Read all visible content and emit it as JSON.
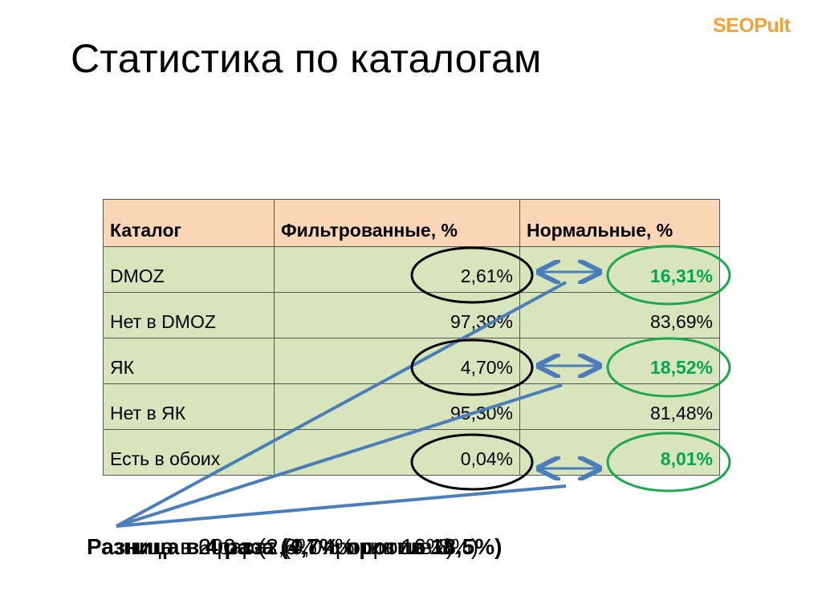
{
  "slide": {
    "title": "Статистика по каталогам",
    "logo": "SEOPult"
  },
  "table": {
    "headers": [
      "Каталог",
      "Фильтрованные, %",
      "Нормальные, %"
    ],
    "rows": [
      {
        "catalog": "DMOZ",
        "filtered": "2,61%",
        "normal": "16,31%",
        "highlight": true
      },
      {
        "catalog": "Нет в DMOZ",
        "filtered": "97,39%",
        "normal": "83,69%",
        "highlight": false
      },
      {
        "catalog": "ЯК",
        "filtered": "4,70%",
        "normal": "18,52%",
        "highlight": true
      },
      {
        "catalog": "Нет в ЯК",
        "filtered": "95,30%",
        "normal": "81,48%",
        "highlight": false
      },
      {
        "catalog": "Есть в обоих",
        "filtered": "0,04%",
        "normal": "8,01%",
        "highlight": true
      }
    ]
  },
  "notes": [
    "Разница в 6 раз (2,6% против 16%)",
    "Разница в 4 раза (4,7% против 18,5%)",
    "Разница в 200 раз (0,04% против 8%)"
  ],
  "colors": {
    "header_bg": "#fbd6b6",
    "cell_bg": "#d8e4bc",
    "highlight_text": "#00a650",
    "green_ellipse": "#1aa84b",
    "arrow_line": "#4a7ebb",
    "logo": "#f2a23a"
  }
}
